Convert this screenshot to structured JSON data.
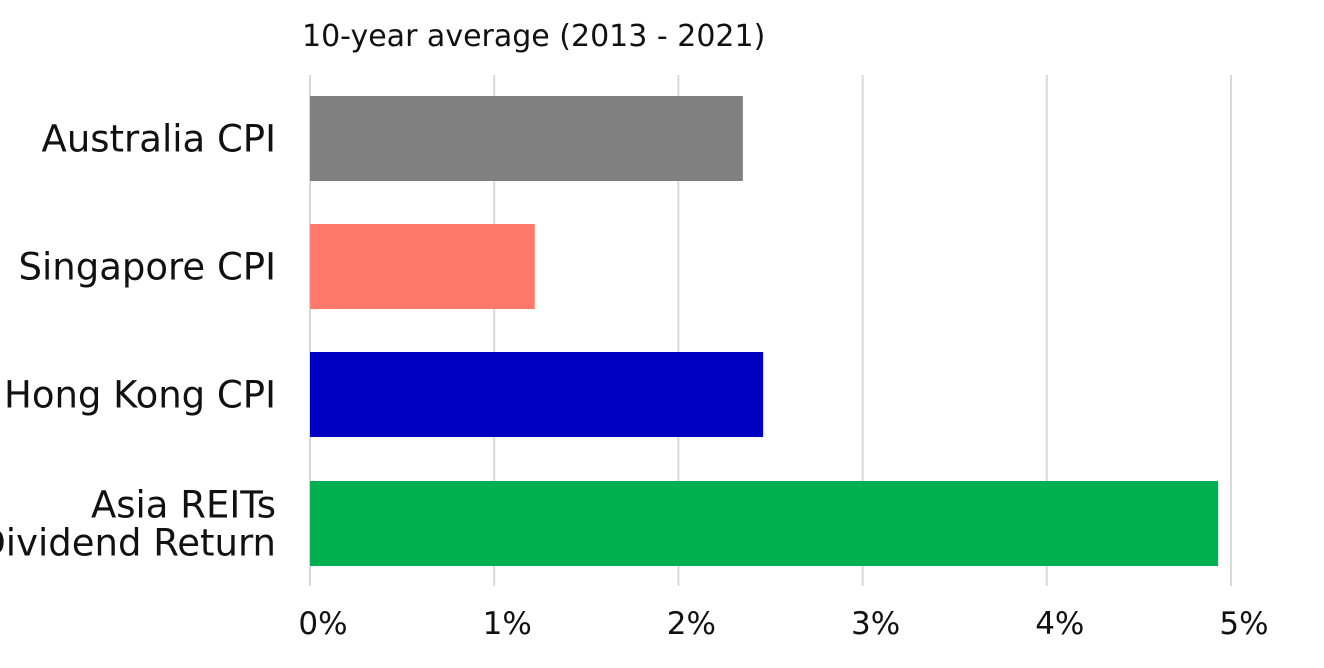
{
  "chart_data": {
    "type": "bar",
    "orientation": "horizontal",
    "title": "10-year average (2013 - 2021)",
    "categories": [
      "Australia CPI",
      "Singapore CPI",
      "Hong Kong CPI",
      "Asia REITs Dividend Return"
    ],
    "category_lines": [
      [
        "Australia CPI"
      ],
      [
        "Singapore CPI"
      ],
      [
        "Hong Kong CPI"
      ],
      [
        "Asia REITs",
        "Dividend Return"
      ]
    ],
    "values": [
      2.35,
      1.22,
      2.46,
      4.93
    ],
    "colors": [
      "#808080",
      "#ff7869",
      "#0000c2",
      "#00b050"
    ],
    "xlim": [
      0,
      5
    ],
    "xticks": [
      0,
      1,
      2,
      3,
      4,
      5
    ],
    "xtick_labels": [
      "0%",
      "1%",
      "2%",
      "3%",
      "4%",
      "5%"
    ],
    "grid": "vertical",
    "legend": "none"
  }
}
